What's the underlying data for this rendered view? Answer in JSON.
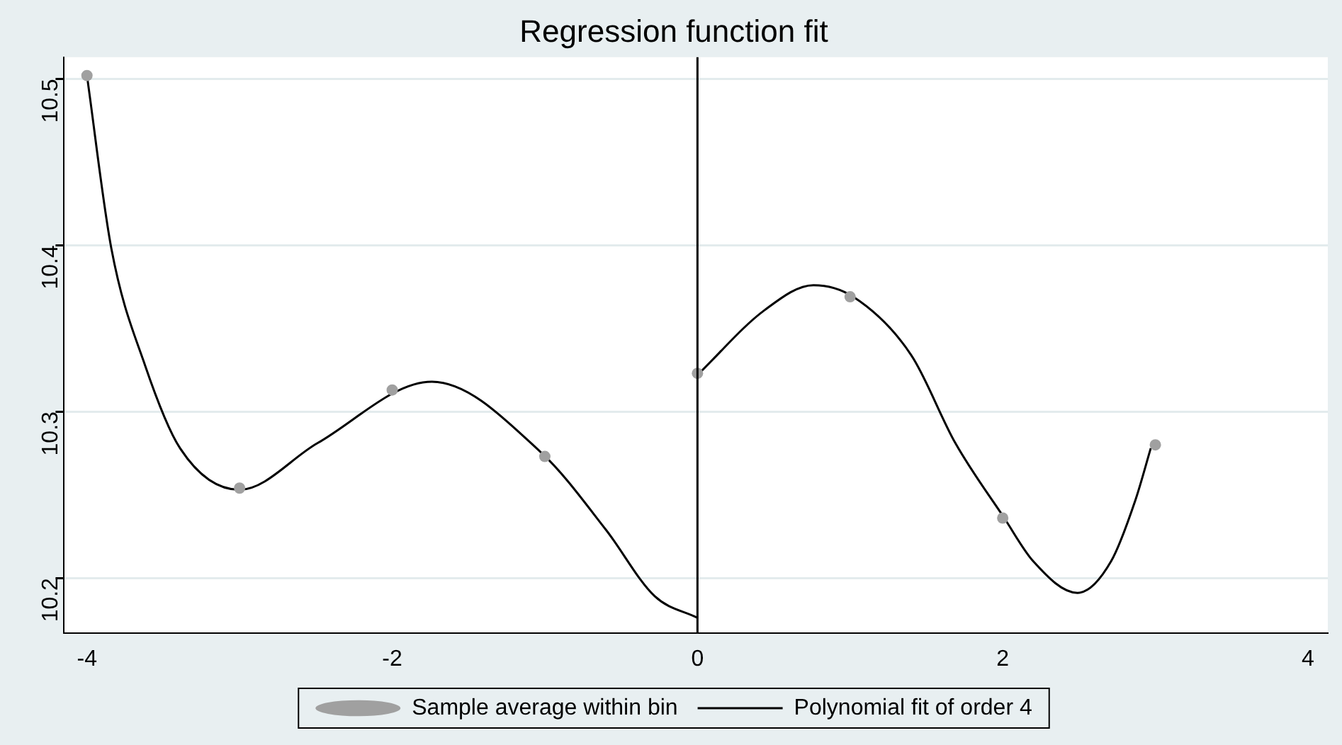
{
  "chart_data": {
    "type": "scatter",
    "title": "Regression function fit",
    "xlim": [
      -4.15,
      4.13
    ],
    "ylim": [
      10.167,
      10.513
    ],
    "xticks": [
      -4,
      -2,
      0,
      2,
      4
    ],
    "yticks": [
      10.2,
      10.3,
      10.4,
      10.5
    ],
    "grid": "y",
    "legend": "bottom",
    "line_style": "solid",
    "series": [
      {
        "name": "Sample average within bin",
        "type": "scatter",
        "marker": "circle",
        "color": "#a0a0a0",
        "x": [
          -4,
          -3,
          -2,
          -1,
          0,
          1,
          2,
          3
        ],
        "values": [
          10.502,
          10.254,
          10.313,
          10.273,
          10.323,
          10.369,
          10.236,
          10.28
        ]
      },
      {
        "name": "Polynomial fit of order 4",
        "type": "line",
        "marker": "none",
        "color": "#000000",
        "x": [
          -4,
          -3.84,
          -3.62,
          -3.39,
          -3,
          -2.49,
          -1.74,
          -1.02,
          -0.6,
          -0.28,
          0
        ],
        "values": [
          10.502,
          10.398,
          10.328,
          10.278,
          10.253,
          10.281,
          10.318,
          10.275,
          10.229,
          10.189,
          10.176
        ]
      },
      {
        "type": "line",
        "marker": "none",
        "color": "#000000",
        "x": [
          0,
          0.44,
          0.76,
          1.02,
          1.4,
          1.69,
          2.01,
          2.2,
          2.49,
          2.71,
          2.87,
          2.97
        ],
        "values": [
          10.322,
          10.361,
          10.376,
          10.369,
          10.334,
          10.281,
          10.236,
          10.21,
          10.191,
          10.21,
          10.247,
          10.278
        ]
      }
    ],
    "ref_lines": [
      {
        "axis": "x",
        "value": 0,
        "color": "#000000"
      }
    ]
  }
}
